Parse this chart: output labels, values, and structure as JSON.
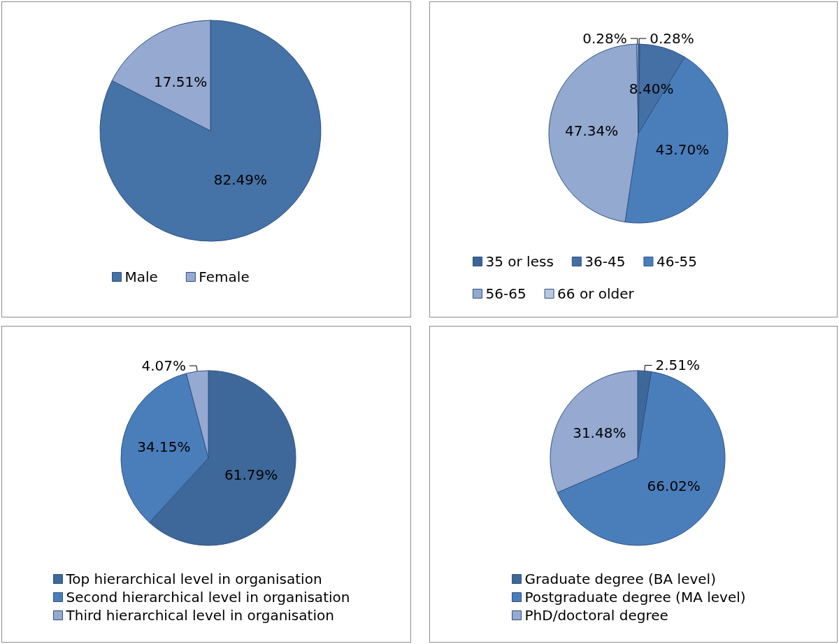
{
  "chart_data": [
    {
      "type": "pie",
      "categories": [
        "Male",
        "Female"
      ],
      "values": [
        82.49,
        17.51
      ],
      "colors": [
        "#4572a7",
        "#95a9d1"
      ],
      "value_labels": [
        "82.49%",
        "17.51%"
      ],
      "legend": "bottom"
    },
    {
      "type": "pie",
      "categories": [
        "35 or less",
        "36-45",
        "46-55",
        "56-65",
        "66 or older"
      ],
      "values": [
        0.28,
        8.4,
        43.7,
        47.34,
        0.28
      ],
      "colors": [
        "#3c6496",
        "#4470a6",
        "#4a7ebb",
        "#93a9cf",
        "#b9c6e0"
      ],
      "value_labels": [
        "0.28%",
        "8.40%",
        "43.70%",
        "47.34%",
        "0.28%"
      ],
      "legend": "bottom"
    },
    {
      "type": "pie",
      "categories": [
        "Top hierarchical level in organisation",
        "Second hierarchical level in organisation",
        "Third hierarchical level in organisation"
      ],
      "values": [
        61.79,
        34.15,
        4.07
      ],
      "colors": [
        "#3d6899",
        "#4a7ebb",
        "#95a9d1"
      ],
      "value_labels": [
        "61.79%",
        "34.15%",
        "4.07%"
      ],
      "legend": "bottom"
    },
    {
      "type": "pie",
      "categories": [
        "Graduate degree (BA level)",
        "Postgraduate degree (MA level)",
        "PhD/doctoral degree"
      ],
      "values": [
        2.51,
        66.02,
        31.48
      ],
      "colors": [
        "#3d6899",
        "#4a7ebb",
        "#95a9d1"
      ],
      "value_labels": [
        "2.51%",
        "66.02%",
        "31.48%"
      ],
      "legend": "bottom"
    }
  ]
}
